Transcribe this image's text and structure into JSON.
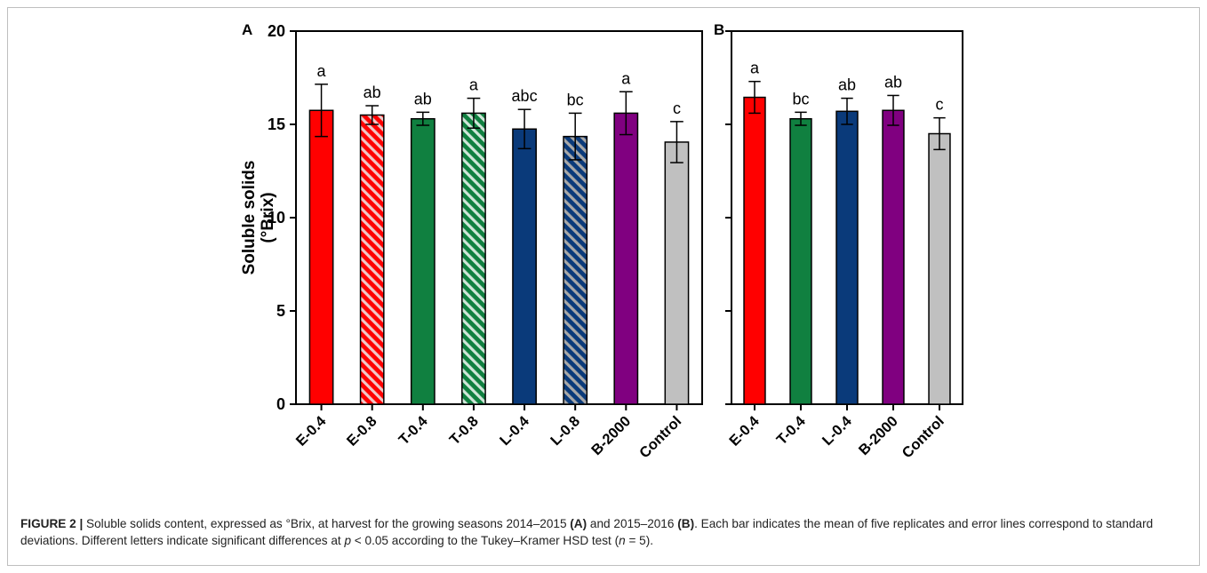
{
  "chart_data": [
    {
      "type": "bar",
      "panel": "A",
      "categories": [
        "E-0.4",
        "E-0.8",
        "T-0.4",
        "T-0.8",
        "L-0.4",
        "L-0.8",
        "B-2000",
        "Control"
      ],
      "values": [
        15.75,
        15.5,
        15.3,
        15.6,
        14.75,
        14.35,
        15.6,
        14.05
      ],
      "errors": [
        1.4,
        0.5,
        0.35,
        0.8,
        1.05,
        1.25,
        1.15,
        1.1
      ],
      "significance": [
        "a",
        "ab",
        "ab",
        "a",
        "abc",
        "bc",
        "a",
        "c"
      ],
      "colors": [
        "#ff0000",
        "#ff0000",
        "#108040",
        "#108040",
        "#0a3a7a",
        "#0a3a7a",
        "#800080",
        "#c0c0c0"
      ],
      "hatched": [
        false,
        true,
        false,
        true,
        false,
        true,
        false,
        false
      ],
      "ylabel_line1": "Soluble solids",
      "ylabel_line2": "(°Brix)",
      "ylim": [
        0,
        20
      ],
      "yticks": [
        "0",
        "5",
        "10",
        "15",
        "20"
      ],
      "grid": false
    },
    {
      "type": "bar",
      "panel": "B",
      "categories": [
        "E-0.4",
        "T-0.4",
        "L-0.4",
        "B-2000",
        "Control"
      ],
      "values": [
        16.45,
        15.3,
        15.7,
        15.75,
        14.5
      ],
      "errors": [
        0.85,
        0.35,
        0.7,
        0.8,
        0.85
      ],
      "significance": [
        "a",
        "bc",
        "ab",
        "ab",
        "c"
      ],
      "colors": [
        "#ff0000",
        "#108040",
        "#0a3a7a",
        "#800080",
        "#c0c0c0"
      ],
      "hatched": [
        false,
        false,
        false,
        false,
        false
      ],
      "ylim": [
        0,
        20
      ],
      "grid": false
    }
  ],
  "caption": {
    "label": "FIGURE 2 |",
    "text_1": " Soluble solids content, expressed as °Brix, at harvest for the growing seasons 2014–2015 ",
    "panel_a": "(A)",
    "text_2": " and 2015–2016 ",
    "panel_b": "(B)",
    "text_3": ". Each bar indicates the mean of five replicates and error lines correspond to standard deviations. Different letters indicate significant differences at ",
    "p_symbol": "p",
    "text_4": " < 0.05 according to the Tukey–Kramer HSD test (",
    "n_symbol": "n",
    "text_5": " = 5)."
  }
}
